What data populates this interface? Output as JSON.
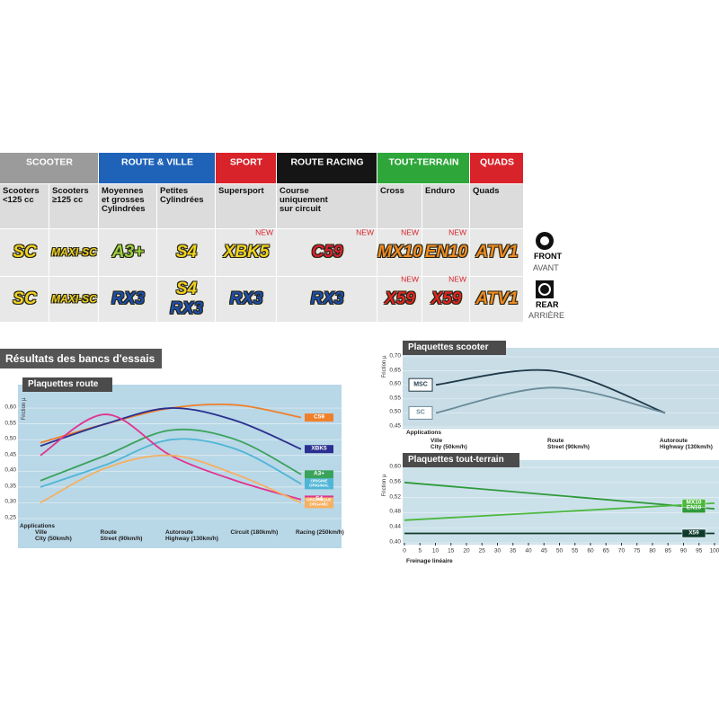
{
  "table": {
    "groups": [
      {
        "label": "SCOOTER",
        "color": "#9b9b9b",
        "columns": [
          {
            "heading": "Scooters\n<125 cc",
            "front": [
              {
                "name": "SC",
                "color": "#f0d21c"
              }
            ],
            "rear": [
              {
                "name": "SC",
                "color": "#f0d21c"
              }
            ]
          },
          {
            "heading": "Scooters\n≥125 cc",
            "front": [
              {
                "name": "MAXI-SC",
                "color": "#f0d21c"
              }
            ],
            "rear": [
              {
                "name": "MAXI-SC",
                "color": "#f0d21c"
              }
            ]
          }
        ]
      },
      {
        "label": "ROUTE & VILLE",
        "color": "#1f63b8",
        "columns": [
          {
            "heading": "Moyennes\net grosses\nCylindrées",
            "front": [
              {
                "name": "A3+",
                "color": "#9ccf3a"
              }
            ],
            "rear": [
              {
                "name": "RX3",
                "color": "#1e4fa8"
              }
            ]
          },
          {
            "heading": "Petites\nCylindrées",
            "front": [
              {
                "name": "S4",
                "color": "#f0d21c"
              }
            ],
            "rear": [
              {
                "name": "S4",
                "color": "#f0d21c"
              },
              {
                "name": "RX3",
                "color": "#1e4fa8"
              }
            ]
          }
        ]
      },
      {
        "label": "SPORT",
        "color": "#d8232a",
        "columns": [
          {
            "heading": "Supersport",
            "front": [
              {
                "name": "XBK5",
                "color": "#f0d21c",
                "new": true
              }
            ],
            "rear": [
              {
                "name": "RX3",
                "color": "#1e4fa8"
              }
            ]
          }
        ]
      },
      {
        "label": "ROUTE RACING",
        "color": "#151515",
        "columns": [
          {
            "heading": "Course\nuniquement\nsur circuit",
            "front": [
              {
                "name": "C59",
                "color": "#d8232a",
                "new": true
              }
            ],
            "rear": [
              {
                "name": "RX3",
                "color": "#1e4fa8"
              }
            ]
          }
        ]
      },
      {
        "label": "TOUT-TERRAIN",
        "color": "#2ea63a",
        "columns": [
          {
            "heading": "Cross",
            "front": [
              {
                "name": "MX10",
                "color": "#f08a1c",
                "new": true
              }
            ],
            "rear": [
              {
                "name": "X59",
                "color": "#e0261c",
                "new": true
              }
            ]
          },
          {
            "heading": "Enduro",
            "front": [
              {
                "name": "EN10",
                "color": "#f08a1c",
                "new": true
              }
            ],
            "rear": [
              {
                "name": "X59",
                "color": "#e0261c",
                "new": true
              }
            ]
          }
        ]
      },
      {
        "label": "QUADS",
        "color": "#d8232a",
        "columns": [
          {
            "heading": "Quads",
            "front": [
              {
                "name": "ATV1",
                "color": "#f08a1c"
              }
            ],
            "rear": [
              {
                "name": "ATV1",
                "color": "#f08a1c"
              }
            ]
          }
        ]
      }
    ],
    "new_label": "NEW",
    "front_label": "FRONT",
    "front_label_fr": "AVANT",
    "rear_label": "REAR",
    "rear_label_fr": "ARRIÈRE"
  },
  "section_title": "Résultats des bancs d'essais",
  "chart_data": [
    {
      "type": "line",
      "title": "Plaquettes route",
      "y_label": "Friction µ",
      "x_label": "Applications",
      "categories": [
        "Ville\nCity (50km/h)",
        "Route\nStreet (90km/h)",
        "Autoroute\nHighway (130km/h)",
        "Circuit (180km/h)",
        "Racing (250km/h)"
      ],
      "series": [
        {
          "name": "C59",
          "color": "#f07f2a",
          "values": [
            0.49,
            0.55,
            0.6,
            0.61,
            0.57
          ]
        },
        {
          "name": "XBK5",
          "color": "#2a2f8f",
          "values": [
            0.48,
            0.55,
            0.6,
            0.56,
            0.47
          ]
        },
        {
          "name": "A3+",
          "color": "#3aa35a",
          "values": [
            0.37,
            0.45,
            0.53,
            0.5,
            0.39
          ]
        },
        {
          "name": "ORIGINE\nORIGINAL",
          "color": "#4fb6d6",
          "values": [
            0.35,
            0.42,
            0.5,
            0.47,
            0.36
          ]
        },
        {
          "name": "S4",
          "color": "#e0338f",
          "values": [
            0.45,
            0.58,
            0.45,
            0.37,
            0.31
          ]
        },
        {
          "name": "ORGANIQUE\nORGANIC",
          "color": "#f6b060",
          "values": [
            0.3,
            0.41,
            0.45,
            0.39,
            0.3
          ]
        }
      ],
      "ylim": [
        0.24,
        0.64
      ],
      "yticks": [
        {
          "value": 0.25,
          "label": "0,25"
        },
        {
          "value": 0.3,
          "label": "0,30"
        },
        {
          "value": 0.35,
          "label": "0,35"
        },
        {
          "value": 0.4,
          "label": "0,40"
        },
        {
          "value": 0.45,
          "label": "0,45"
        },
        {
          "value": 0.5,
          "label": "0,50"
        },
        {
          "value": 0.55,
          "label": "0,55"
        },
        {
          "value": 0.6,
          "label": "0,60"
        }
      ],
      "grid": true
    },
    {
      "type": "line",
      "title": "Plaquettes scooter",
      "y_label": "Friction µ",
      "x_label": "Applications",
      "categories": [
        "Ville\nCity (50km/h)",
        "Route\nStreet (90km/h)",
        "Autoroute\nHighway (130km/h)"
      ],
      "series": [
        {
          "name": "MSC",
          "color": "#1f3a4a",
          "values": [
            0.6,
            0.65,
            0.5
          ]
        },
        {
          "name": "SC",
          "color": "#6a8a99",
          "values": [
            0.5,
            0.59,
            0.5
          ]
        }
      ],
      "ylim": [
        0.45,
        0.7
      ],
      "yticks": [
        {
          "value": 0.45,
          "label": "0,45"
        },
        {
          "value": 0.5,
          "label": "0,50"
        },
        {
          "value": 0.55,
          "label": "0,55"
        },
        {
          "value": 0.6,
          "label": "0,60"
        },
        {
          "value": 0.65,
          "label": "0,65"
        },
        {
          "value": 0.7,
          "label": "0,70"
        }
      ],
      "grid": true
    },
    {
      "type": "line",
      "title": "Plaquettes tout-terrain",
      "y_label": "Friction µ",
      "x_label": "Freinage linéaire",
      "x": [
        0,
        100
      ],
      "series": [
        {
          "name": "EN10",
          "color": "#2f9a3a",
          "values": [
            0.56,
            0.49
          ]
        },
        {
          "name": "MX10",
          "color": "#4cb83e",
          "values": [
            0.46,
            0.505
          ]
        },
        {
          "name": "X59",
          "color": "#0f3b2a",
          "values": [
            0.425,
            0.425
          ]
        }
      ],
      "xlim": [
        0,
        100
      ],
      "xticks": [
        0,
        5,
        10,
        15,
        20,
        25,
        30,
        35,
        40,
        45,
        50,
        55,
        60,
        65,
        70,
        75,
        80,
        85,
        90,
        95,
        100
      ],
      "ylim": [
        0.4,
        0.6
      ],
      "yticks": [
        {
          "value": 0.4,
          "label": "0,40"
        },
        {
          "value": 0.44,
          "label": "0,44"
        },
        {
          "value": 0.48,
          "label": "0,48"
        },
        {
          "value": 0.52,
          "label": "0,52"
        },
        {
          "value": 0.56,
          "label": "0,56"
        },
        {
          "value": 0.6,
          "label": "0,60"
        }
      ],
      "grid": true
    }
  ]
}
